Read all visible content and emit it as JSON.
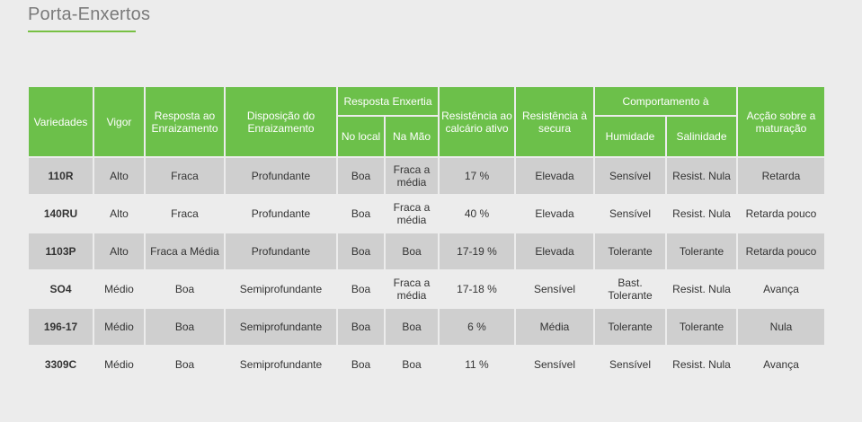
{
  "page": {
    "title": "Porta-Enxertos"
  },
  "table": {
    "headers": {
      "variedades": "Variedades",
      "vigor": "Vigor",
      "resposta_enraizamento": "Resposta ao Enraizamento",
      "disposicao_enraizamento": "Disposição do Enraizamento",
      "resposta_enxertia": "Resposta Enxertia",
      "no_local": "No local",
      "na_mao": "Na Mão",
      "resistencia_calcario": "Resistência ao calcário ativo",
      "resistencia_secura": "Resistência à secura",
      "comportamento": "Comportamento à",
      "humidade": "Humidade",
      "salinidade": "Salinidade",
      "accao_maturacao": "Acção sobre a maturação"
    },
    "rows": [
      [
        "110R",
        "Alto",
        "Fraca",
        "Profundante",
        "Boa",
        "Fraca a média",
        "17 %",
        "Elevada",
        "Sensível",
        "Resist. Nula",
        "Retarda"
      ],
      [
        "140RU",
        "Alto",
        "Fraca",
        "Profundante",
        "Boa",
        "Fraca a média",
        "40 %",
        "Elevada",
        "Sensível",
        "Resist. Nula",
        "Retarda pouco"
      ],
      [
        "1103P",
        "Alto",
        "Fraca a Média",
        "Profundante",
        "Boa",
        "Boa",
        "17-19 %",
        "Elevada",
        "Tolerante",
        "Tolerante",
        "Retarda pouco"
      ],
      [
        "SO4",
        "Médio",
        "Boa",
        "Semiprofundante",
        "Boa",
        "Fraca a média",
        "17-18 %",
        "Sensível",
        "Bast. Tolerante",
        "Resist. Nula",
        "Avança"
      ],
      [
        "196-17",
        "Médio",
        "Boa",
        "Semiprofundante",
        "Boa",
        "Boa",
        "6 %",
        "Média",
        "Tolerante",
        "Tolerante",
        "Nula"
      ],
      [
        "3309C",
        "Médio",
        "Boa",
        "Semiprofundante",
        "Boa",
        "Boa",
        "11 %",
        "Sensível",
        "Sensível",
        "Resist. Nula",
        "Avança"
      ]
    ]
  }
}
